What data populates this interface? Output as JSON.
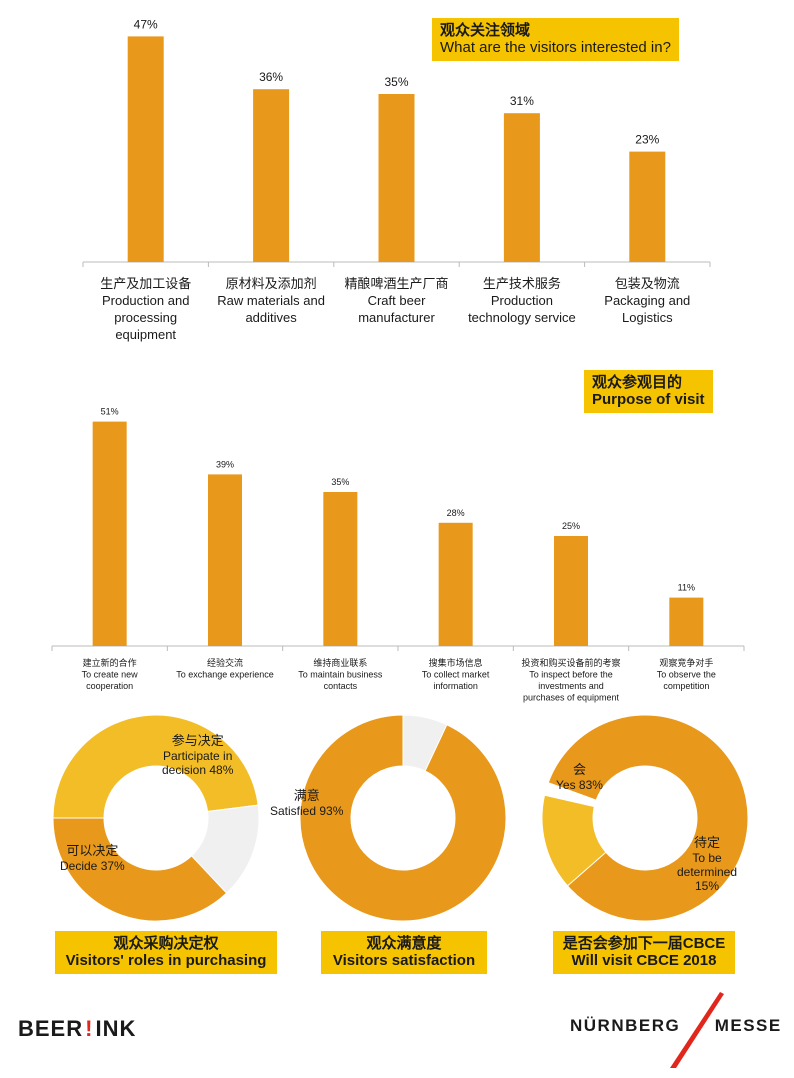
{
  "chart_data": [
    {
      "type": "bar",
      "title_zh": "观众关注领域",
      "title_en": "What are the visitors interested in?",
      "categories": [
        {
          "zh": "生产及加工设备",
          "en": [
            "Production and",
            "processing",
            "equipment"
          ]
        },
        {
          "zh": "原材料及添加剂",
          "en": [
            "Raw materials and",
            "additives"
          ]
        },
        {
          "zh": "精酿啤酒生产厂商",
          "en": [
            "Craft beer",
            "manufacturer"
          ]
        },
        {
          "zh": "生产技术服务",
          "en": [
            "Production",
            "technology service"
          ]
        },
        {
          "zh": "包装及物流",
          "en": [
            "Packaging and",
            "Logistics"
          ]
        }
      ],
      "values": [
        47,
        36,
        35,
        31,
        23
      ],
      "value_labels": [
        "47%",
        "36%",
        "35%",
        "31%",
        "23%"
      ],
      "color": "#e8981a"
    },
    {
      "type": "bar",
      "title_zh": "观众参观目的",
      "title_en": "Purpose of visit",
      "categories": [
        {
          "zh": "建立新的合作",
          "en": [
            "To create new",
            "cooperation"
          ]
        },
        {
          "zh": "经验交流",
          "en": [
            "To exchange experience"
          ]
        },
        {
          "zh": "维持商业联系",
          "en": [
            "To maintain business",
            "contacts"
          ]
        },
        {
          "zh": "搜集市场信息",
          "en": [
            "To collect market",
            "information"
          ]
        },
        {
          "zh": "投资和购买设备前的考察",
          "en": [
            "To inspect before the",
            "investments and",
            "purchases of equipment"
          ]
        },
        {
          "zh": "观察竞争对手",
          "en": [
            "To observe the",
            "competition"
          ]
        }
      ],
      "values": [
        51,
        39,
        35,
        28,
        25,
        11
      ],
      "value_labels": [
        "51%",
        "39%",
        "35%",
        "28%",
        "25%",
        "11%"
      ],
      "color": "#e8981a"
    },
    {
      "type": "pie",
      "title_zh": "观众采购决定权",
      "title_en": "Visitors' roles in purchasing",
      "slices": [
        {
          "zh": "参与决定",
          "en": "Participate in decision 48%",
          "value": 48,
          "color": "#f2bd26"
        },
        {
          "zh": "",
          "en": "",
          "value": 15,
          "color": "#f0f0f0"
        },
        {
          "zh": "可以决定",
          "en": "Decide 37%",
          "value": 37,
          "color": "#e8981a"
        }
      ]
    },
    {
      "type": "pie",
      "title_zh": "观众满意度",
      "title_en": "Visitors satisfaction",
      "slices": [
        {
          "zh": "满意",
          "en": "Satisfied 93%",
          "value": 93,
          "color": "#e8981a"
        },
        {
          "zh": "",
          "en": "",
          "value": 7,
          "color": "#f0f0f0"
        }
      ]
    },
    {
      "type": "pie",
      "title_zh": "是否会参加下一届CBCE",
      "title_en": "Will visit CBCE 2018",
      "slices": [
        {
          "zh": "会",
          "en": "Yes 83%",
          "value": 83,
          "color": "#e8981a"
        },
        {
          "zh": "待定",
          "en": "To be determined 15%",
          "value": 15,
          "color": "#f2bd26"
        },
        {
          "zh": "",
          "en": "",
          "value": 2,
          "color": "#ffffff"
        }
      ]
    }
  ],
  "donut1": {
    "label1_zh": "参与决定",
    "label1_en_a": "Participate in",
    "label1_en_b": "decision  48%",
    "label2_zh": "可以决定",
    "label2_en": "Decide  37%"
  },
  "donut2": {
    "label1_zh": "满意",
    "label1_en": "Satisfied  93%"
  },
  "donut3": {
    "label1_zh": "会",
    "label1_en": "Yes  83%",
    "label2_zh": "待定",
    "label2_en_a": "To be",
    "label2_en_b": "determined",
    "label2_en_c": "15%"
  },
  "logos": {
    "beerlink_a": "BEER",
    "beerlink_b": "!",
    "beerlink_c": "INK",
    "nm_a": "NÜRNBERG",
    "nm_b": "MESSE"
  }
}
